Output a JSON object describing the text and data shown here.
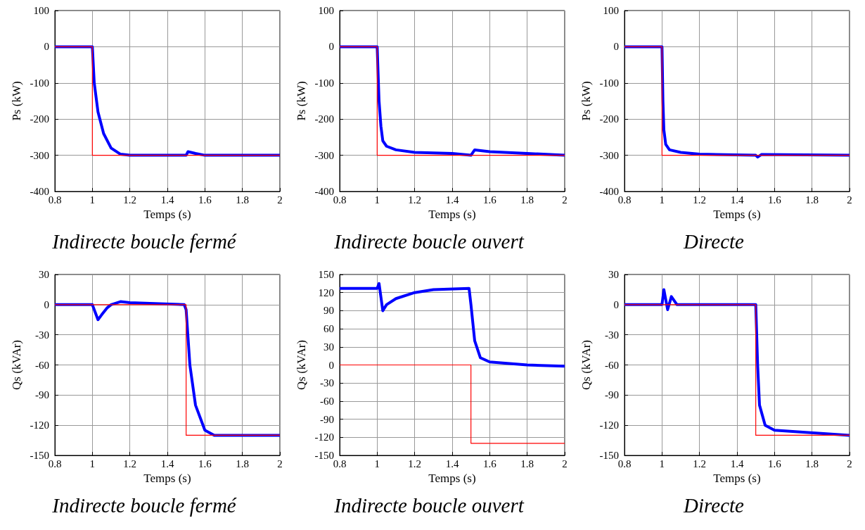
{
  "chart_data": [
    {
      "type": "line",
      "title": "Indirecte boucle fermé",
      "xlabel": "Temps (s)",
      "ylabel": "Ps (kW)",
      "xlim": [
        0.8,
        2
      ],
      "xticks": [
        0.8,
        1,
        1.2,
        1.4,
        1.6,
        1.8,
        2
      ],
      "ylim": [
        -400,
        100
      ],
      "yticks": [
        -400,
        -300,
        -200,
        -100,
        0,
        100
      ],
      "grid": true,
      "marker": "none",
      "line_style": "solid",
      "series": [
        {
          "color": "#0000ff",
          "x": [
            0.8,
            1.0,
            1.01,
            1.03,
            1.06,
            1.1,
            1.15,
            1.2,
            1.5,
            1.51,
            1.55,
            1.6,
            2
          ],
          "values": [
            0,
            0,
            -100,
            -180,
            -240,
            -280,
            -297,
            -300,
            -300,
            -290,
            -295,
            -300,
            -300
          ]
        },
        {
          "color": "#ff0000",
          "x": [
            0.8,
            1,
            1,
            2
          ],
          "values": [
            0,
            0,
            -300,
            -300
          ]
        }
      ]
    },
    {
      "type": "line",
      "title": "Indirecte boucle ouvert",
      "xlabel": "Temps (s)",
      "ylabel": "Ps (kW)",
      "xlim": [
        0.8,
        2
      ],
      "xticks": [
        0.8,
        1,
        1.2,
        1.4,
        1.6,
        1.8,
        2
      ],
      "ylim": [
        -400,
        100
      ],
      "yticks": [
        -400,
        -300,
        -200,
        -100,
        0,
        100
      ],
      "grid": true,
      "marker": "none",
      "line_style": "solid",
      "series": [
        {
          "color": "#0000ff",
          "x": [
            0.8,
            1.0,
            1.01,
            1.02,
            1.03,
            1.05,
            1.1,
            1.2,
            1.4,
            1.5,
            1.52,
            1.6,
            1.8,
            2
          ],
          "values": [
            0,
            0,
            -150,
            -220,
            -260,
            -275,
            -285,
            -292,
            -295,
            -300,
            -285,
            -290,
            -295,
            -300
          ]
        },
        {
          "color": "#ff0000",
          "x": [
            0.8,
            1,
            1,
            2
          ],
          "values": [
            0,
            0,
            -300,
            -300
          ]
        }
      ]
    },
    {
      "type": "line",
      "title": "Directe",
      "xlabel": "Temps (s)",
      "ylabel": "Ps (kW)",
      "xlim": [
        0.8,
        2
      ],
      "xticks": [
        0.8,
        1,
        1.2,
        1.4,
        1.6,
        1.8,
        2
      ],
      "ylim": [
        -400,
        100
      ],
      "yticks": [
        -400,
        -300,
        -200,
        -100,
        0,
        100
      ],
      "grid": true,
      "marker": "none",
      "line_style": "solid",
      "series": [
        {
          "color": "#0000ff",
          "x": [
            0.8,
            1.0,
            1.005,
            1.01,
            1.02,
            1.04,
            1.1,
            1.2,
            1.5,
            1.51,
            1.53,
            2
          ],
          "values": [
            0,
            0,
            -150,
            -230,
            -270,
            -285,
            -292,
            -297,
            -300,
            -305,
            -298,
            -300
          ]
        },
        {
          "color": "#ff0000",
          "x": [
            0.8,
            1,
            1,
            2
          ],
          "values": [
            0,
            0,
            -300,
            -300
          ]
        }
      ]
    },
    {
      "type": "line",
      "title": "Indirecte boucle fermé",
      "xlabel": "Temps (s)",
      "ylabel": "Qs (kVAr)",
      "xlim": [
        0.8,
        2
      ],
      "xticks": [
        0.8,
        1,
        1.2,
        1.4,
        1.6,
        1.8,
        2
      ],
      "ylim": [
        -150,
        30
      ],
      "yticks": [
        -150,
        -120,
        -90,
        -60,
        -30,
        0,
        30
      ],
      "grid": true,
      "marker": "none",
      "line_style": "solid",
      "series": [
        {
          "color": "#0000ff",
          "x": [
            0.8,
            1.0,
            1.03,
            1.05,
            1.08,
            1.1,
            1.15,
            1.2,
            1.49,
            1.5,
            1.52,
            1.55,
            1.6,
            1.65,
            2
          ],
          "values": [
            0,
            0,
            -15,
            -10,
            -3,
            0,
            3,
            2,
            0,
            -5,
            -60,
            -100,
            -125,
            -130,
            -130
          ]
        },
        {
          "color": "#ff0000",
          "x": [
            0.8,
            1.5,
            1.5,
            2
          ],
          "values": [
            0,
            0,
            -130,
            -130
          ]
        }
      ]
    },
    {
      "type": "line",
      "title": "Indirecte boucle ouvert",
      "xlabel": "Temps (s)",
      "ylabel": "Qs (kVAr)",
      "xlim": [
        0.8,
        2
      ],
      "xticks": [
        0.8,
        1,
        1.2,
        1.4,
        1.6,
        1.8,
        2
      ],
      "ylim": [
        -150,
        150
      ],
      "yticks": [
        -150,
        -120,
        -90,
        -60,
        -30,
        0,
        30,
        60,
        90,
        120,
        150
      ],
      "grid": true,
      "marker": "none",
      "line_style": "solid",
      "series": [
        {
          "color": "#0000ff",
          "x": [
            0.8,
            1.0,
            1.01,
            1.03,
            1.05,
            1.1,
            1.2,
            1.3,
            1.49,
            1.5,
            1.52,
            1.55,
            1.6,
            1.8,
            2
          ],
          "values": [
            127,
            127,
            135,
            90,
            100,
            110,
            120,
            125,
            127,
            100,
            40,
            12,
            5,
            0,
            -2
          ]
        },
        {
          "color": "#ff0000",
          "x": [
            0.8,
            1.5,
            1.5,
            2
          ],
          "values": [
            0,
            0,
            -130,
            -130
          ]
        }
      ]
    },
    {
      "type": "line",
      "title": "Directe",
      "xlabel": "Temps (s)",
      "ylabel": "Qs (kVAr)",
      "xlim": [
        0.8,
        2
      ],
      "xticks": [
        0.8,
        1,
        1.2,
        1.4,
        1.6,
        1.8,
        2
      ],
      "ylim": [
        -150,
        30
      ],
      "yticks": [
        -150,
        -120,
        -90,
        -60,
        -30,
        0,
        30
      ],
      "grid": true,
      "marker": "none",
      "line_style": "solid",
      "series": [
        {
          "color": "#0000ff",
          "x": [
            0.8,
            1.0,
            1.01,
            1.03,
            1.05,
            1.08,
            1.5,
            1.51,
            1.52,
            1.55,
            1.6,
            2
          ],
          "values": [
            0,
            0,
            15,
            -5,
            8,
            0,
            0,
            -60,
            -100,
            -120,
            -125,
            -130
          ]
        },
        {
          "color": "#ff0000",
          "x": [
            0.8,
            1.5,
            1.5,
            2
          ],
          "values": [
            0,
            0,
            -130,
            -130
          ]
        }
      ]
    }
  ]
}
